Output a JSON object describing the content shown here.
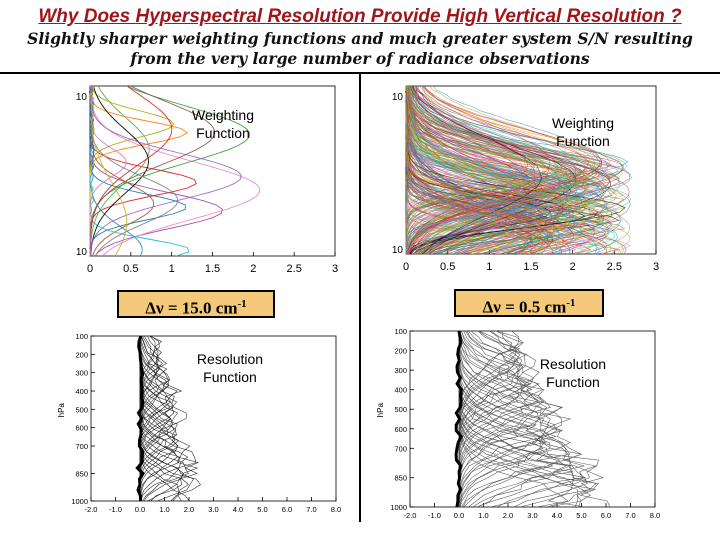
{
  "title": "Why Does Hyperspectral Resolution Provide High Vertical Resolution ?",
  "subtitle_line1": "Slightly sharper weighting functions and much greater system S/N resulting",
  "subtitle_line2": "from the very large number of radiance observations",
  "weighting_label_line1": "Weighting",
  "weighting_label_line2": "Function",
  "resolution_label_line1": "Resolution",
  "resolution_label_line2": "Function",
  "delta_left": {
    "prefix": "Δν = 15.0 cm",
    "exp": "-1"
  },
  "delta_right": {
    "prefix": "Δν = 0.5 cm",
    "exp": "-1"
  },
  "wf_axis": {
    "x_ticks": [
      "0",
      "0.5",
      "1",
      "1.5",
      "2",
      "2.5",
      "3"
    ],
    "y_top": "10",
    "y_top_exp": "0",
    "y_bottom": "10",
    "y_bottom_exp": "3"
  },
  "rf_axis": {
    "y_label": "hPa",
    "y_ticks": [
      "100",
      "200",
      "300",
      "400",
      "500",
      "600",
      "700",
      "850",
      "1000"
    ],
    "x_ticks": [
      "-2.0",
      "-1.0",
      "0.0",
      "1.0",
      "2.0",
      "3.0",
      "4.0",
      "5.0",
      "6.0",
      "7.0",
      "8.0"
    ]
  },
  "chart_data": [
    {
      "type": "line",
      "panel": "top-left",
      "title": "Weighting Function",
      "spectral_resolution": "15.0 cm-1",
      "xlim": [
        0,
        3
      ],
      "ylim_log_pressure": [
        1,
        1000
      ],
      "n_curves": 18
    },
    {
      "type": "line",
      "panel": "top-right",
      "title": "Weighting Function",
      "spectral_resolution": "0.5 cm-1",
      "xlim": [
        0,
        3
      ],
      "ylim_log_pressure": [
        1,
        1000
      ],
      "n_curves": 260
    },
    {
      "type": "line",
      "panel": "bottom-left",
      "title": "Resolution Function",
      "xlim": [
        -2,
        8
      ],
      "ylim_pressure": [
        100,
        1000
      ],
      "n_curves": 40
    },
    {
      "type": "line",
      "panel": "bottom-right",
      "title": "Resolution Function",
      "xlim": [
        -2,
        8
      ],
      "ylim_pressure": [
        100,
        1000
      ],
      "n_curves": 50
    }
  ]
}
